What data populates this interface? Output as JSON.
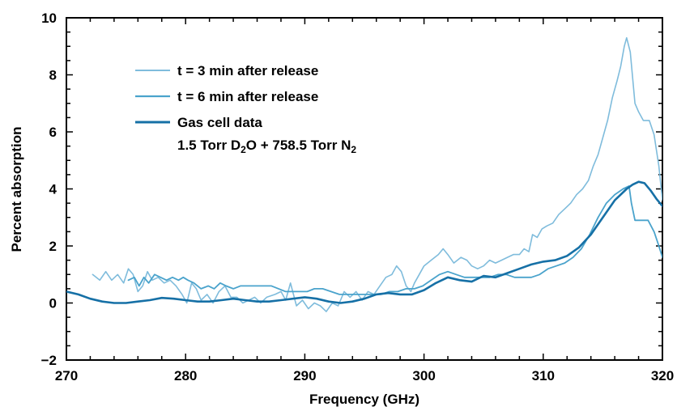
{
  "chart_data": {
    "type": "line",
    "title": "",
    "xlabel": "Frequency (GHz)",
    "ylabel": "Percent absorption",
    "xlim": [
      270,
      320
    ],
    "ylim": [
      -2,
      10
    ],
    "xticks": [
      270,
      280,
      290,
      300,
      310,
      320
    ],
    "yticks": [
      -2,
      0,
      2,
      4,
      6,
      8,
      10
    ],
    "grid": false,
    "legend_position": "top-left",
    "legend_extra_line": {
      "parts": [
        "1.5 Torr D",
        "2",
        "O + 758.5 Torr N",
        "2"
      ]
    },
    "series": [
      {
        "name": "t = 3 min after release",
        "color": "#7fbcdc",
        "width": 1.6,
        "points": [
          [
            272.2,
            1.0
          ],
          [
            272.8,
            0.8
          ],
          [
            273.3,
            1.1
          ],
          [
            273.8,
            0.8
          ],
          [
            274.3,
            1.0
          ],
          [
            274.8,
            0.7
          ],
          [
            275.2,
            1.2
          ],
          [
            275.6,
            1.0
          ],
          [
            276.0,
            0.4
          ],
          [
            276.4,
            0.6
          ],
          [
            276.8,
            1.1
          ],
          [
            277.2,
            0.8
          ],
          [
            277.7,
            0.9
          ],
          [
            278.2,
            0.7
          ],
          [
            278.7,
            0.8
          ],
          [
            279.2,
            0.6
          ],
          [
            279.7,
            0.3
          ],
          [
            280.1,
            0.0
          ],
          [
            280.5,
            0.7
          ],
          [
            280.9,
            0.5
          ],
          [
            281.3,
            0.1
          ],
          [
            281.8,
            0.3
          ],
          [
            282.3,
            0.0
          ],
          [
            282.8,
            0.4
          ],
          [
            283.3,
            0.6
          ],
          [
            283.8,
            0.2
          ],
          [
            284.3,
            0.2
          ],
          [
            284.8,
            0.0
          ],
          [
            285.3,
            0.1
          ],
          [
            285.8,
            0.2
          ],
          [
            286.3,
            0.0
          ],
          [
            286.8,
            0.2
          ],
          [
            287.5,
            0.3
          ],
          [
            288.0,
            0.4
          ],
          [
            288.4,
            0.1
          ],
          [
            288.8,
            0.7
          ],
          [
            289.3,
            -0.1
          ],
          [
            289.8,
            0.1
          ],
          [
            290.3,
            -0.2
          ],
          [
            290.8,
            0.0
          ],
          [
            291.3,
            -0.1
          ],
          [
            291.8,
            -0.3
          ],
          [
            292.3,
            0.0
          ],
          [
            292.8,
            -0.1
          ],
          [
            293.3,
            0.4
          ],
          [
            293.8,
            0.2
          ],
          [
            294.3,
            0.4
          ],
          [
            294.8,
            0.1
          ],
          [
            295.3,
            0.4
          ],
          [
            295.8,
            0.3
          ],
          [
            296.3,
            0.6
          ],
          [
            296.8,
            0.9
          ],
          [
            297.3,
            1.0
          ],
          [
            297.7,
            1.3
          ],
          [
            298.1,
            1.1
          ],
          [
            298.5,
            0.6
          ],
          [
            298.9,
            0.4
          ],
          [
            299.2,
            0.7
          ],
          [
            299.6,
            1.0
          ],
          [
            300.0,
            1.3
          ],
          [
            300.6,
            1.5
          ],
          [
            301.2,
            1.7
          ],
          [
            301.6,
            1.9
          ],
          [
            302.0,
            1.7
          ],
          [
            302.5,
            1.4
          ],
          [
            303.1,
            1.6
          ],
          [
            303.6,
            1.5
          ],
          [
            304.0,
            1.3
          ],
          [
            304.5,
            1.2
          ],
          [
            305.0,
            1.3
          ],
          [
            305.5,
            1.5
          ],
          [
            306.0,
            1.4
          ],
          [
            306.5,
            1.5
          ],
          [
            307.0,
            1.6
          ],
          [
            307.5,
            1.7
          ],
          [
            308.0,
            1.7
          ],
          [
            308.4,
            1.9
          ],
          [
            308.8,
            1.8
          ],
          [
            309.1,
            2.4
          ],
          [
            309.5,
            2.3
          ],
          [
            309.9,
            2.6
          ],
          [
            310.3,
            2.7
          ],
          [
            310.8,
            2.8
          ],
          [
            311.3,
            3.1
          ],
          [
            311.8,
            3.3
          ],
          [
            312.3,
            3.5
          ],
          [
            312.8,
            3.8
          ],
          [
            313.3,
            4.0
          ],
          [
            313.8,
            4.3
          ],
          [
            314.2,
            4.8
          ],
          [
            314.6,
            5.2
          ],
          [
            315.0,
            5.8
          ],
          [
            315.4,
            6.4
          ],
          [
            315.8,
            7.2
          ],
          [
            316.2,
            7.8
          ],
          [
            316.5,
            8.3
          ],
          [
            316.8,
            9.0
          ],
          [
            317.0,
            9.3
          ],
          [
            317.3,
            8.8
          ],
          [
            317.7,
            7.0
          ],
          [
            318.0,
            6.7
          ],
          [
            318.4,
            6.4
          ],
          [
            318.9,
            6.4
          ],
          [
            319.3,
            5.9
          ],
          [
            319.7,
            4.8
          ],
          [
            320.0,
            3.6
          ]
        ]
      },
      {
        "name": "t = 6 min after release",
        "color": "#4aa3cc",
        "width": 1.8,
        "points": [
          [
            275.2,
            0.8
          ],
          [
            275.7,
            0.9
          ],
          [
            276.1,
            0.6
          ],
          [
            276.5,
            0.9
          ],
          [
            276.9,
            0.7
          ],
          [
            277.4,
            1.0
          ],
          [
            277.9,
            0.9
          ],
          [
            278.4,
            0.8
          ],
          [
            278.9,
            0.9
          ],
          [
            279.4,
            0.8
          ],
          [
            279.8,
            0.9
          ],
          [
            280.2,
            0.8
          ],
          [
            280.7,
            0.7
          ],
          [
            281.3,
            0.5
          ],
          [
            281.9,
            0.6
          ],
          [
            282.4,
            0.5
          ],
          [
            282.9,
            0.7
          ],
          [
            283.4,
            0.6
          ],
          [
            284.0,
            0.5
          ],
          [
            284.6,
            0.6
          ],
          [
            285.2,
            0.6
          ],
          [
            285.8,
            0.6
          ],
          [
            286.5,
            0.6
          ],
          [
            287.2,
            0.6
          ],
          [
            287.8,
            0.5
          ],
          [
            288.4,
            0.4
          ],
          [
            289.0,
            0.4
          ],
          [
            289.6,
            0.4
          ],
          [
            290.2,
            0.4
          ],
          [
            290.8,
            0.5
          ],
          [
            291.5,
            0.5
          ],
          [
            292.2,
            0.4
          ],
          [
            292.9,
            0.3
          ],
          [
            293.6,
            0.3
          ],
          [
            294.3,
            0.3
          ],
          [
            295.0,
            0.3
          ],
          [
            295.7,
            0.3
          ],
          [
            296.4,
            0.3
          ],
          [
            297.1,
            0.4
          ],
          [
            297.8,
            0.4
          ],
          [
            298.5,
            0.5
          ],
          [
            299.2,
            0.5
          ],
          [
            299.9,
            0.6
          ],
          [
            300.6,
            0.8
          ],
          [
            301.3,
            1.0
          ],
          [
            302.0,
            1.1
          ],
          [
            302.7,
            1.0
          ],
          [
            303.4,
            0.9
          ],
          [
            304.1,
            0.9
          ],
          [
            304.8,
            0.9
          ],
          [
            305.5,
            0.9
          ],
          [
            306.2,
            1.0
          ],
          [
            306.9,
            1.0
          ],
          [
            307.6,
            0.9
          ],
          [
            308.3,
            0.9
          ],
          [
            309.0,
            0.9
          ],
          [
            309.7,
            1.0
          ],
          [
            310.4,
            1.2
          ],
          [
            311.1,
            1.3
          ],
          [
            311.8,
            1.4
          ],
          [
            312.5,
            1.6
          ],
          [
            313.2,
            1.9
          ],
          [
            313.9,
            2.4
          ],
          [
            314.6,
            3.0
          ],
          [
            315.3,
            3.5
          ],
          [
            316.0,
            3.8
          ],
          [
            316.7,
            4.0
          ],
          [
            317.2,
            4.1
          ],
          [
            317.4,
            3.5
          ],
          [
            317.7,
            2.9
          ],
          [
            318.2,
            2.9
          ],
          [
            318.8,
            2.9
          ],
          [
            319.3,
            2.5
          ],
          [
            319.7,
            2.0
          ],
          [
            320.0,
            1.6
          ]
        ]
      },
      {
        "name": "Gas cell data",
        "color": "#1670a6",
        "width": 2.6,
        "points": [
          [
            270.0,
            0.4
          ],
          [
            271.0,
            0.3
          ],
          [
            272.0,
            0.15
          ],
          [
            273.0,
            0.05
          ],
          [
            274.0,
            0.0
          ],
          [
            275.0,
            0.0
          ],
          [
            276.0,
            0.05
          ],
          [
            277.0,
            0.1
          ],
          [
            278.0,
            0.18
          ],
          [
            279.0,
            0.15
          ],
          [
            280.0,
            0.1
          ],
          [
            281.0,
            0.05
          ],
          [
            282.0,
            0.05
          ],
          [
            283.0,
            0.1
          ],
          [
            284.0,
            0.15
          ],
          [
            285.0,
            0.1
          ],
          [
            286.0,
            0.05
          ],
          [
            287.0,
            0.05
          ],
          [
            288.0,
            0.1
          ],
          [
            289.0,
            0.15
          ],
          [
            290.0,
            0.2
          ],
          [
            291.0,
            0.15
          ],
          [
            292.0,
            0.05
          ],
          [
            293.0,
            0.0
          ],
          [
            294.0,
            0.05
          ],
          [
            295.0,
            0.15
          ],
          [
            296.0,
            0.3
          ],
          [
            297.0,
            0.35
          ],
          [
            298.0,
            0.3
          ],
          [
            299.0,
            0.3
          ],
          [
            300.0,
            0.45
          ],
          [
            301.0,
            0.7
          ],
          [
            302.0,
            0.9
          ],
          [
            303.0,
            0.8
          ],
          [
            304.0,
            0.75
          ],
          [
            305.0,
            0.95
          ],
          [
            306.0,
            0.9
          ],
          [
            307.0,
            1.05
          ],
          [
            308.0,
            1.2
          ],
          [
            309.0,
            1.35
          ],
          [
            310.0,
            1.45
          ],
          [
            311.0,
            1.5
          ],
          [
            312.0,
            1.65
          ],
          [
            313.0,
            1.95
          ],
          [
            314.0,
            2.4
          ],
          [
            315.0,
            3.0
          ],
          [
            316.0,
            3.6
          ],
          [
            317.0,
            4.0
          ],
          [
            317.5,
            4.15
          ],
          [
            318.0,
            4.25
          ],
          [
            318.5,
            4.2
          ],
          [
            319.0,
            3.95
          ],
          [
            319.5,
            3.65
          ],
          [
            320.0,
            3.4
          ]
        ]
      }
    ]
  }
}
